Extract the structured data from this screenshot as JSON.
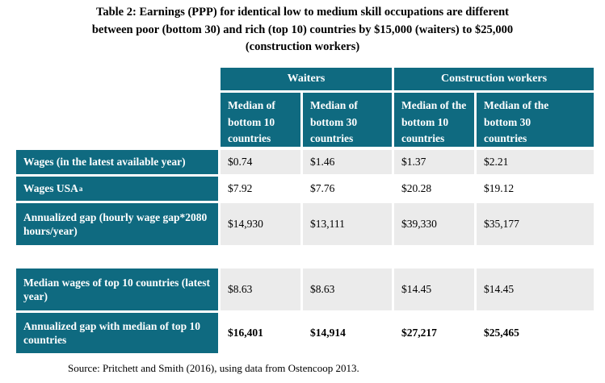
{
  "page": {
    "title_line1": "Table 2: Earnings (PPP) for identical low to medium skill occupations are different",
    "title_line2": "between poor (bottom 30) and rich (top 10) countries by $15,000 (waiters) to $25,000",
    "title_line3": "(construction workers)",
    "source": "Source: Pritchett and Smith (2016), using data from Ostencoop 2013."
  },
  "table": {
    "group_headers": [
      {
        "label": "Waiters"
      },
      {
        "label": "Construction workers"
      }
    ],
    "column_headers": [
      {
        "label": "Median of bottom 10 countries"
      },
      {
        "label": "Median of bottom 30 countries"
      },
      {
        "label": "Median of the bottom 10 countries"
      },
      {
        "label": "Median of the bottom 30 countries"
      }
    ],
    "rows": [
      {
        "label": "Wages (in the latest available year)",
        "values": [
          "$0.74",
          "$1.46",
          "$1.37",
          "$2.21"
        ]
      },
      {
        "label": "Wages USA",
        "footnote_marker": "a",
        "values": [
          "$7.92",
          "$7.76",
          "$20.28",
          "$19.12"
        ]
      },
      {
        "label": "Annualized gap (hourly wage gap*2080 hours/year)",
        "values": [
          "$14,930",
          "$13,111",
          "$39,330",
          "$35,177"
        ]
      },
      {
        "label": "Median wages of top 10 countries (latest year)",
        "values": [
          "$8.63",
          "$8.63",
          "$14.45",
          "$14.45"
        ]
      },
      {
        "label": "Annualized gap with median of top 10 countries",
        "values": [
          "$16,401",
          "$14,914",
          "$27,217",
          "$25,465"
        ]
      }
    ],
    "colors": {
      "header_teal": "#0f6a80",
      "row_shade": "#ebebeb",
      "background": "#ffffff"
    }
  },
  "chart_data": {
    "type": "table",
    "title": "Table 2: Earnings (PPP) for identical low to medium skill occupations are different between poor (bottom 30) and rich (top 10) countries by $15,000 (waiters) to $25,000 (construction workers)",
    "columns": [
      "Waiters - Median of bottom 10 countries",
      "Waiters - Median of bottom 30 countries",
      "Construction workers - Median of the bottom 10 countries",
      "Construction workers - Median of the bottom 30 countries"
    ],
    "rows": [
      {
        "label": "Wages (in the latest available year)",
        "values": [
          0.74,
          1.46,
          1.37,
          2.21
        ]
      },
      {
        "label": "Wages USA (a)",
        "values": [
          7.92,
          7.76,
          20.28,
          19.12
        ]
      },
      {
        "label": "Annualized gap (hourly wage gap*2080 hours/year)",
        "values": [
          14930,
          13111,
          39330,
          35177
        ]
      },
      {
        "label": "Median wages of top 10 countries (latest year)",
        "values": [
          8.63,
          8.63,
          14.45,
          14.45
        ]
      },
      {
        "label": "Annualized gap with median of top 10 countries",
        "values": [
          16401,
          14914,
          27217,
          25465
        ]
      }
    ]
  }
}
